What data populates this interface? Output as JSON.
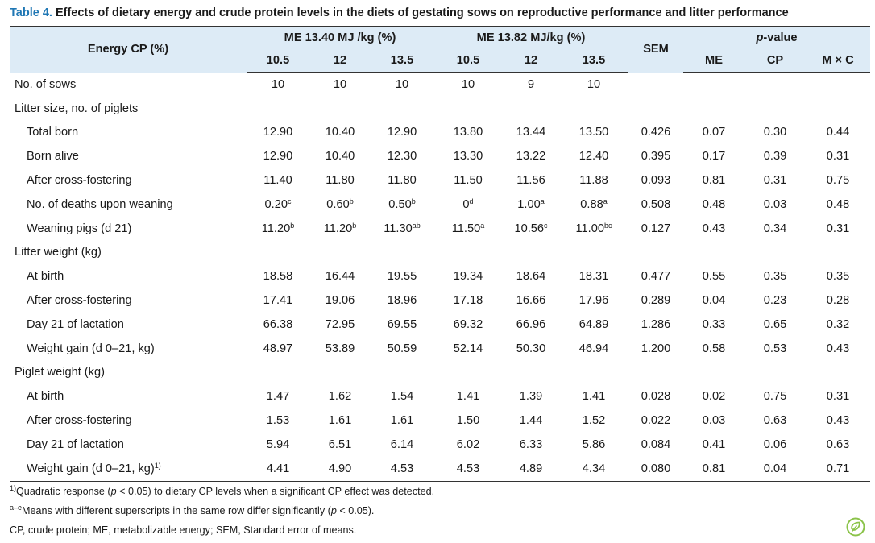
{
  "caption": {
    "label": "Table 4.",
    "text": " Effects of dietary energy and crude protein levels in the diets of gestating sows on reproductive performance and litter performance"
  },
  "header": {
    "energy_cp": "Energy CP (%)",
    "group1": "ME 13.40 MJ /kg (%)",
    "group2": "ME 13.82 MJ/kg (%)",
    "sem": "SEM",
    "pvalue_italic": "p",
    "pvalue_rest": "-value",
    "levels": [
      "10.5",
      "12",
      "13.5",
      "10.5",
      "12",
      "13.5"
    ],
    "p_cols": [
      "ME",
      "CP",
      "M × C"
    ]
  },
  "rows": [
    {
      "label": "No. of sows",
      "indent": false,
      "cells": [
        [
          "10",
          ""
        ],
        [
          "10",
          ""
        ],
        [
          "10",
          ""
        ],
        [
          "10",
          ""
        ],
        [
          "9",
          ""
        ],
        [
          "10",
          ""
        ]
      ],
      "sem": "",
      "p": [
        "",
        "",
        ""
      ]
    },
    {
      "label": "Litter size, no. of piglets",
      "indent": false,
      "cells": [],
      "sem": "",
      "p": []
    },
    {
      "label": "Total born",
      "indent": true,
      "cells": [
        [
          "12.90",
          ""
        ],
        [
          "10.40",
          ""
        ],
        [
          "12.90",
          ""
        ],
        [
          "13.80",
          ""
        ],
        [
          "13.44",
          ""
        ],
        [
          "13.50",
          ""
        ]
      ],
      "sem": "0.426",
      "p": [
        "0.07",
        "0.30",
        "0.44"
      ]
    },
    {
      "label": "Born alive",
      "indent": true,
      "cells": [
        [
          "12.90",
          ""
        ],
        [
          "10.40",
          ""
        ],
        [
          "12.30",
          ""
        ],
        [
          "13.30",
          ""
        ],
        [
          "13.22",
          ""
        ],
        [
          "12.40",
          ""
        ]
      ],
      "sem": "0.395",
      "p": [
        "0.17",
        "0.39",
        "0.31"
      ]
    },
    {
      "label": "After cross-fostering",
      "indent": true,
      "cells": [
        [
          "11.40",
          ""
        ],
        [
          "11.80",
          ""
        ],
        [
          "11.80",
          ""
        ],
        [
          "11.50",
          ""
        ],
        [
          "11.56",
          ""
        ],
        [
          "11.88",
          ""
        ]
      ],
      "sem": "0.093",
      "p": [
        "0.81",
        "0.31",
        "0.75"
      ]
    },
    {
      "label": "No. of deaths upon weaning",
      "indent": true,
      "cells": [
        [
          "0.20",
          "c"
        ],
        [
          "0.60",
          "b"
        ],
        [
          "0.50",
          "b"
        ],
        [
          "0",
          "d"
        ],
        [
          "1.00",
          "a"
        ],
        [
          "0.88",
          "a"
        ]
      ],
      "sem": "0.508",
      "p": [
        "0.48",
        "0.03",
        "0.48"
      ]
    },
    {
      "label": "Weaning pigs (d 21)",
      "indent": true,
      "cells": [
        [
          "11.20",
          "b"
        ],
        [
          "11.20",
          "b"
        ],
        [
          "11.30",
          "ab"
        ],
        [
          "11.50",
          "a"
        ],
        [
          "10.56",
          "c"
        ],
        [
          "11.00",
          "bc"
        ]
      ],
      "sem": "0.127",
      "p": [
        "0.43",
        "0.34",
        "0.31"
      ]
    },
    {
      "label": "Litter weight (kg)",
      "indent": false,
      "cells": [],
      "sem": "",
      "p": []
    },
    {
      "label": "At birth",
      "indent": true,
      "cells": [
        [
          "18.58",
          ""
        ],
        [
          "16.44",
          ""
        ],
        [
          "19.55",
          ""
        ],
        [
          "19.34",
          ""
        ],
        [
          "18.64",
          ""
        ],
        [
          "18.31",
          ""
        ]
      ],
      "sem": "0.477",
      "p": [
        "0.55",
        "0.35",
        "0.35"
      ]
    },
    {
      "label": "After cross-fostering",
      "indent": true,
      "cells": [
        [
          "17.41",
          ""
        ],
        [
          "19.06",
          ""
        ],
        [
          "18.96",
          ""
        ],
        [
          "17.18",
          ""
        ],
        [
          "16.66",
          ""
        ],
        [
          "17.96",
          ""
        ]
      ],
      "sem": "0.289",
      "p": [
        "0.04",
        "0.23",
        "0.28"
      ]
    },
    {
      "label": "Day 21 of lactation",
      "indent": true,
      "cells": [
        [
          "66.38",
          ""
        ],
        [
          "72.95",
          ""
        ],
        [
          "69.55",
          ""
        ],
        [
          "69.32",
          ""
        ],
        [
          "66.96",
          ""
        ],
        [
          "64.89",
          ""
        ]
      ],
      "sem": "1.286",
      "p": [
        "0.33",
        "0.65",
        "0.32"
      ]
    },
    {
      "label": "Weight gain (d 0–21, kg)",
      "indent": true,
      "cells": [
        [
          "48.97",
          ""
        ],
        [
          "53.89",
          ""
        ],
        [
          "50.59",
          ""
        ],
        [
          "52.14",
          ""
        ],
        [
          "50.30",
          ""
        ],
        [
          "46.94",
          ""
        ]
      ],
      "sem": "1.200",
      "p": [
        "0.58",
        "0.53",
        "0.43"
      ]
    },
    {
      "label": "Piglet weight (kg)",
      "indent": false,
      "cells": [],
      "sem": "",
      "p": []
    },
    {
      "label": "At birth",
      "indent": true,
      "cells": [
        [
          "1.47",
          ""
        ],
        [
          "1.62",
          ""
        ],
        [
          "1.54",
          ""
        ],
        [
          "1.41",
          ""
        ],
        [
          "1.39",
          ""
        ],
        [
          "1.41",
          ""
        ]
      ],
      "sem": "0.028",
      "p": [
        "0.02",
        "0.75",
        "0.31"
      ]
    },
    {
      "label": "After cross-fostering",
      "indent": true,
      "cells": [
        [
          "1.53",
          ""
        ],
        [
          "1.61",
          ""
        ],
        [
          "1.61",
          ""
        ],
        [
          "1.50",
          ""
        ],
        [
          "1.44",
          ""
        ],
        [
          "1.52",
          ""
        ]
      ],
      "sem": "0.022",
      "p": [
        "0.03",
        "0.63",
        "0.43"
      ]
    },
    {
      "label": "Day 21 of lactation",
      "indent": true,
      "cells": [
        [
          "5.94",
          ""
        ],
        [
          "6.51",
          ""
        ],
        [
          "6.14",
          ""
        ],
        [
          "6.02",
          ""
        ],
        [
          "6.33",
          ""
        ],
        [
          "5.86",
          ""
        ]
      ],
      "sem": "0.084",
      "p": [
        "0.41",
        "0.06",
        "0.63"
      ]
    },
    {
      "label": "Weight gain (d 0–21, kg)",
      "label_sup": "1)",
      "indent": true,
      "cells": [
        [
          "4.41",
          ""
        ],
        [
          "4.90",
          ""
        ],
        [
          "4.53",
          ""
        ],
        [
          "4.53",
          ""
        ],
        [
          "4.89",
          ""
        ],
        [
          "4.34",
          ""
        ]
      ],
      "sem": "0.080",
      "p": [
        "0.81",
        "0.04",
        "0.71"
      ]
    }
  ],
  "footnotes": {
    "n1_sup": "1)",
    "n1_a": "Quadratic response (",
    "n1_p": "p",
    "n1_b": " < 0.05) to dietary CP levels when a significant CP effect was detected.",
    "n2_sup": "a–e",
    "n2_a": "Means with different superscripts in the same row differ significantly (",
    "n2_p": "p",
    "n2_b": " < 0.05).",
    "n3": "CP, crude protein; ME, metabolizable energy; SEM, Standard error of means."
  },
  "logo_icon": "leaf-check-icon"
}
